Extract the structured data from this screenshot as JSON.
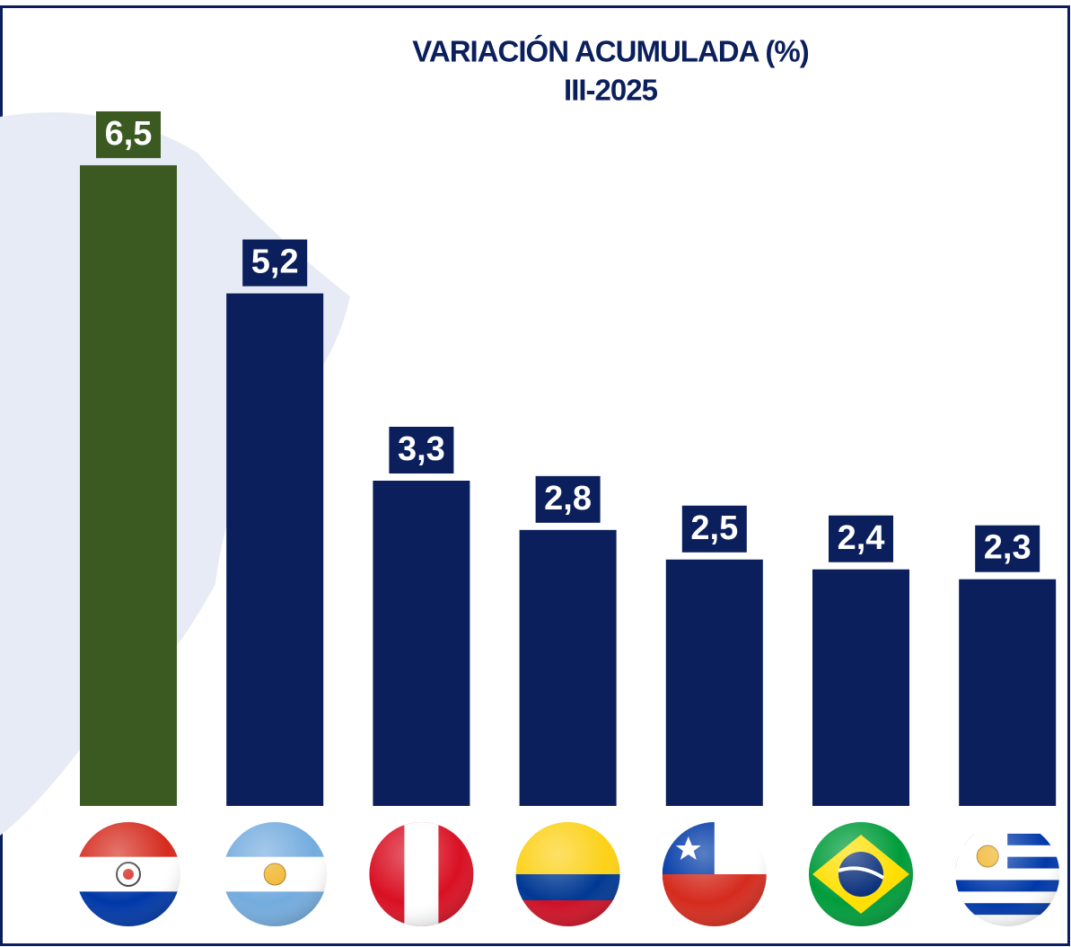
{
  "chart_data": {
    "type": "bar",
    "title": "VARIACIÓN ACUMULADA (%)",
    "subtitle": "III-2025",
    "categories": [
      null,
      null,
      null,
      null,
      null,
      null,
      null
    ],
    "values": [
      6.5,
      5.2,
      3.3,
      2.8,
      2.5,
      2.4,
      2.3
    ],
    "value_labels": [
      "6,5",
      "5,2",
      "3,3",
      "2,8",
      "2,5",
      "2,4",
      "2,3"
    ],
    "colors": [
      "#3b5a22",
      "#0b1f5c",
      "#0b1f5c",
      "#0b1f5c",
      "#0b1f5c",
      "#0b1f5c",
      "#0b1f5c"
    ]
  }
}
